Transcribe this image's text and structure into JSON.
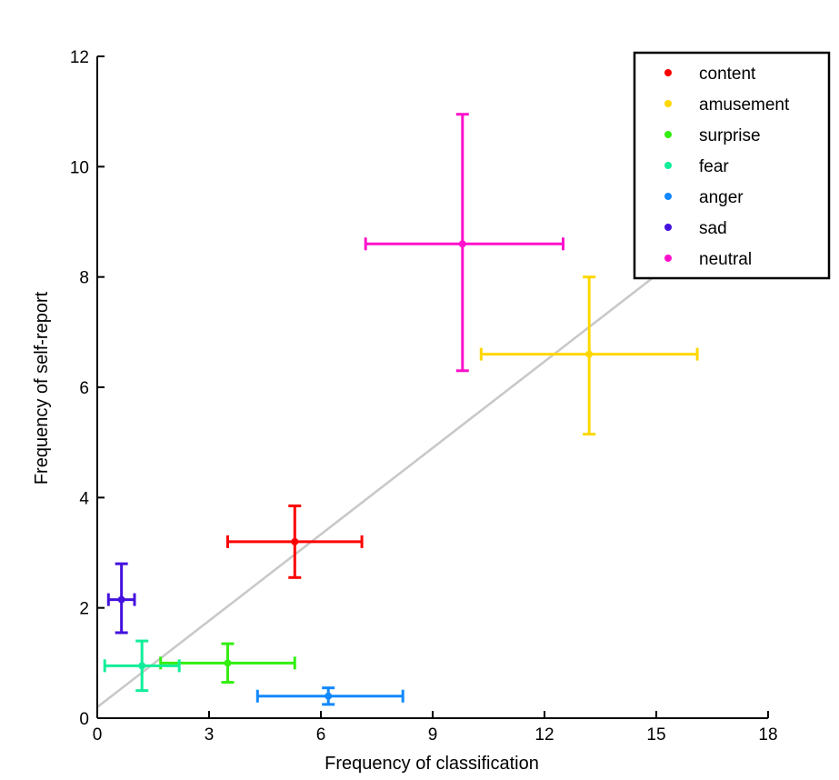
{
  "chart_data": {
    "type": "scatter",
    "title": "",
    "xlabel": "Frequency of classification",
    "ylabel": "Frequency of self-report",
    "xlim": [
      0,
      18
    ],
    "ylim": [
      0,
      12
    ],
    "xticks": [
      0,
      3,
      6,
      9,
      12,
      15,
      18
    ],
    "yticks": [
      0,
      2,
      4,
      6,
      8,
      10,
      12
    ],
    "grid": false,
    "legend_position": "top-right",
    "reference_line": {
      "from": [
        0,
        0.2
      ],
      "to": [
        18,
        9.6
      ],
      "color": "#c8c8c8"
    },
    "series": [
      {
        "name": "content",
        "color": "#ff0000",
        "x": 5.3,
        "y": 3.2,
        "xerr": [
          3.5,
          7.1
        ],
        "yerr": [
          2.55,
          3.85
        ]
      },
      {
        "name": "amusement",
        "color": "#ffd700",
        "x": 13.2,
        "y": 6.6,
        "xerr": [
          10.3,
          16.1
        ],
        "yerr": [
          5.15,
          8.0
        ]
      },
      {
        "name": "surprise",
        "color": "#33ee11",
        "x": 3.5,
        "y": 1.0,
        "xerr": [
          1.7,
          5.3
        ],
        "yerr": [
          0.65,
          1.35
        ]
      },
      {
        "name": "fear",
        "color": "#11ee99",
        "x": 1.2,
        "y": 0.95,
        "xerr": [
          0.2,
          2.2
        ],
        "yerr": [
          0.5,
          1.4
        ]
      },
      {
        "name": "anger",
        "color": "#1188ff",
        "x": 6.2,
        "y": 0.4,
        "xerr": [
          4.3,
          8.2
        ],
        "yerr": [
          0.25,
          0.55
        ]
      },
      {
        "name": "sad",
        "color": "#4411dd",
        "x": 0.65,
        "y": 2.15,
        "xerr": [
          0.3,
          1.0
        ],
        "yerr": [
          1.55,
          2.8
        ]
      },
      {
        "name": "neutral",
        "color": "#ff11cc",
        "x": 9.8,
        "y": 8.6,
        "xerr": [
          7.2,
          12.5
        ],
        "yerr": [
          6.3,
          10.95
        ]
      }
    ]
  }
}
